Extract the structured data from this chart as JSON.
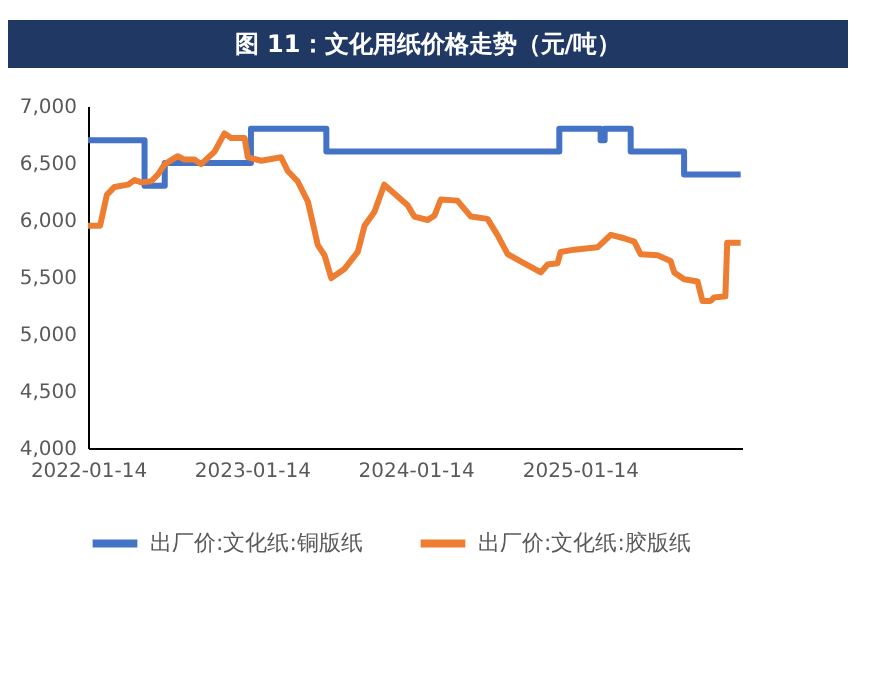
{
  "chart_data": {
    "type": "line",
    "title": "图 11：文化用纸价格走势（元/吨）",
    "xlim": [
      "2022-01-14",
      "2026-01-10"
    ],
    "xticks": [
      {
        "value": "2022-01-14",
        "label": "2022-01-14"
      },
      {
        "value": "2023-01-14",
        "label": "2023-01-14"
      },
      {
        "value": "2024-01-14",
        "label": "2024-01-14"
      },
      {
        "value": "2025-01-14",
        "label": "2025-01-14"
      }
    ],
    "ylim": [
      4000,
      7000
    ],
    "yticks": [
      {
        "value": 4000,
        "label": "4,000"
      },
      {
        "value": 4500,
        "label": "4,500"
      },
      {
        "value": 5000,
        "label": "5,000"
      },
      {
        "value": 5500,
        "label": "5,500"
      },
      {
        "value": 6000,
        "label": "6,000"
      },
      {
        "value": 6500,
        "label": "6,500"
      },
      {
        "value": 7000,
        "label": "7,000"
      }
    ],
    "grid": false,
    "legend": "bottom",
    "marker": "none",
    "line_style": "solid",
    "series": [
      {
        "name": "出厂价:文化纸:铜版纸",
        "color": "#4472c4",
        "type": "step",
        "x": [
          "2022-01-14",
          "2022-05-20",
          "2022-07-04",
          "2023-01-12",
          "2023-06-29",
          "2024-11-29",
          "2025-03-01",
          "2025-03-10",
          "2025-05-07",
          "2025-09-03",
          "2026-01-07"
        ],
        "values": [
          6700,
          6300,
          6500,
          6800,
          6600,
          6800,
          6700,
          6800,
          6600,
          6400,
          6400
        ]
      },
      {
        "name": "出厂价:文化纸:胶版纸",
        "color": "#ed7d31",
        "type": "line",
        "x": [
          "2022-01-14",
          "2022-02-10",
          "2022-02-25",
          "2022-03-14",
          "2022-04-13",
          "2022-04-28",
          "2022-05-13",
          "2022-06-04",
          "2022-06-19",
          "2022-07-04",
          "2022-08-02",
          "2022-08-17",
          "2022-09-08",
          "2022-09-23",
          "2022-10-23",
          "2022-11-14",
          "2022-11-29",
          "2022-12-29",
          "2023-01-05",
          "2023-02-04",
          "2023-03-20",
          "2023-04-04",
          "2023-04-26",
          "2023-05-19",
          "2023-06-10",
          "2023-06-25",
          "2023-07-10",
          "2023-08-08",
          "2023-09-07",
          "2023-09-22",
          "2023-10-14",
          "2023-11-05",
          "2023-11-28",
          "2023-12-27",
          "2024-01-11",
          "2024-02-10",
          "2024-02-25",
          "2024-03-10",
          "2024-04-16",
          "2024-05-16",
          "2024-06-22",
          "2024-07-14",
          "2024-08-06",
          "2024-09-12",
          "2024-10-19",
          "2024-11-03",
          "2024-11-25",
          "2024-12-02",
          "2025-01-01",
          "2025-02-22",
          "2025-03-24",
          "2025-04-22",
          "2025-05-15",
          "2025-05-29",
          "2025-07-06",
          "2025-08-04",
          "2025-08-12",
          "2025-09-03",
          "2025-10-03",
          "2025-10-14",
          "2025-11-01",
          "2025-11-09",
          "2025-12-04",
          "2025-12-08",
          "2026-01-07"
        ],
        "values": [
          5950,
          5950,
          6220,
          6290,
          6310,
          6350,
          6330,
          6340,
          6400,
          6490,
          6560,
          6530,
          6530,
          6490,
          6600,
          6760,
          6720,
          6720,
          6550,
          6520,
          6550,
          6430,
          6340,
          6160,
          5780,
          5690,
          5490,
          5570,
          5720,
          5950,
          6070,
          6310,
          6230,
          6130,
          6030,
          6000,
          6040,
          6180,
          6170,
          6030,
          6010,
          5870,
          5700,
          5620,
          5540,
          5610,
          5620,
          5720,
          5740,
          5760,
          5870,
          5840,
          5810,
          5700,
          5690,
          5640,
          5540,
          5480,
          5460,
          5290,
          5290,
          5320,
          5330,
          5800,
          5800
        ]
      }
    ]
  }
}
